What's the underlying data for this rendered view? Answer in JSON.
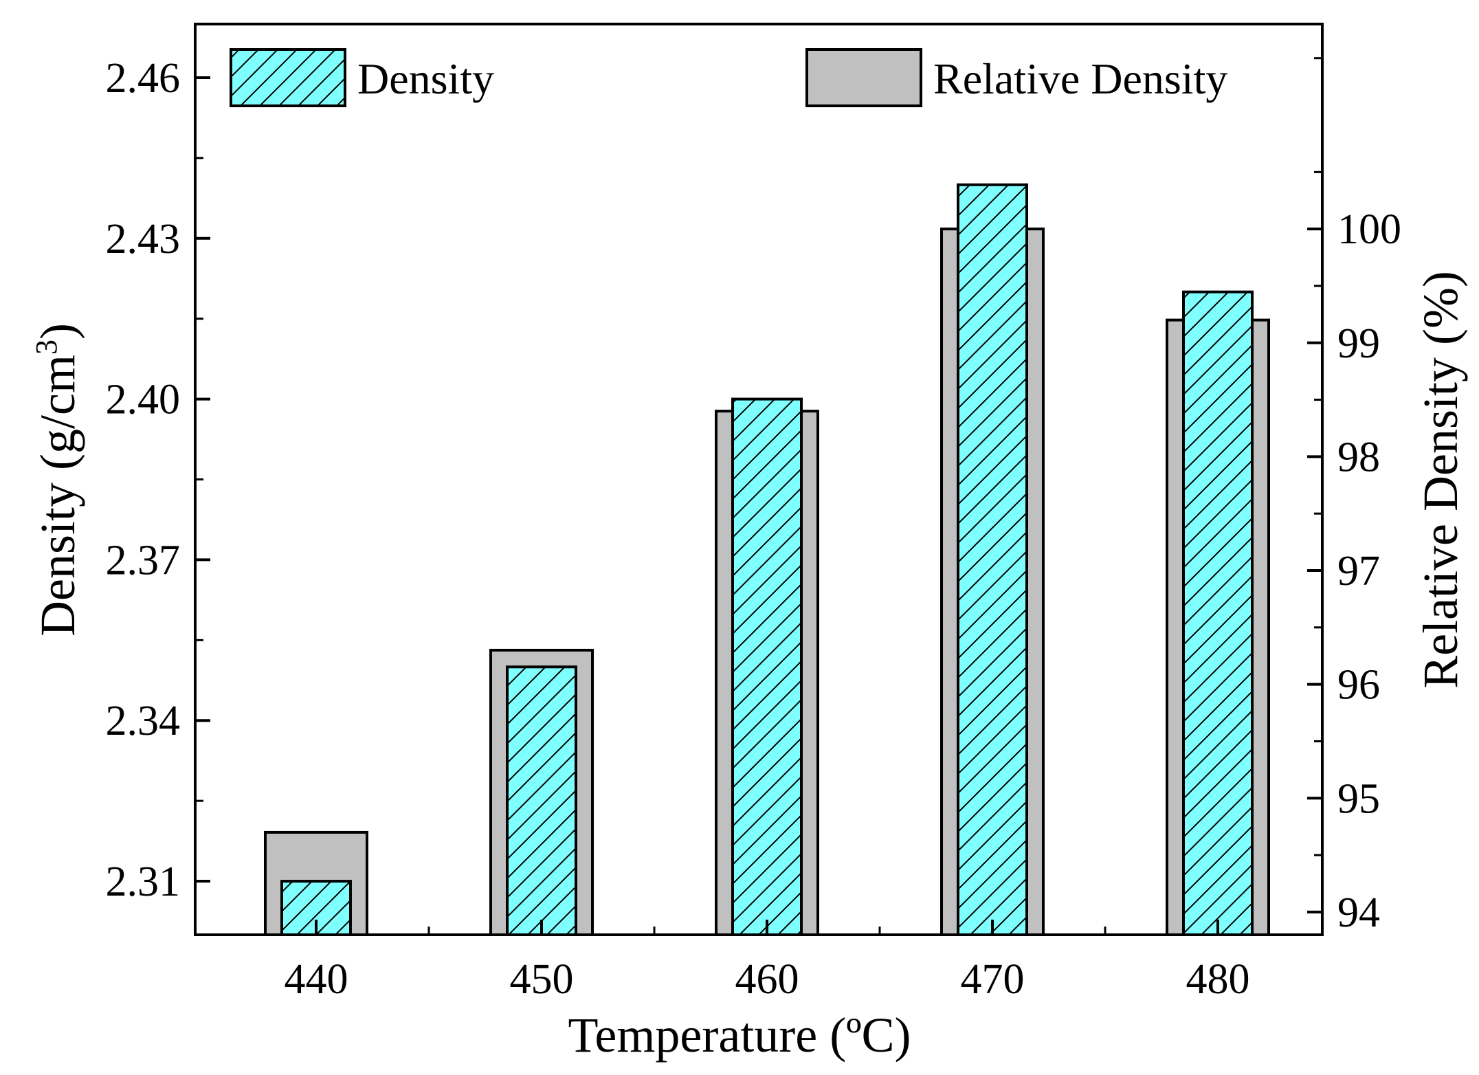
{
  "chart_data": {
    "type": "bar",
    "categories": [
      "440",
      "450",
      "460",
      "470",
      "480"
    ],
    "series": [
      {
        "name": "Density",
        "axis": "left",
        "values": [
          2.31,
          2.35,
          2.4,
          2.44,
          2.42
        ],
        "fill": "#80ffff",
        "pattern": "diagonal-hatch"
      },
      {
        "name": "Relative Density",
        "axis": "right",
        "values": [
          94.7,
          96.3,
          98.4,
          100.0,
          99.2
        ],
        "fill": "#c0c0c0"
      }
    ],
    "xlabel": "Temperature (ºC)",
    "ylabel_left": {
      "prefix": "Density (g/cm",
      "superscript": "3",
      "suffix": ")"
    },
    "ylabel_right": "Relative Density (%)",
    "ylim_left": [
      2.3,
      2.47
    ],
    "ylim_right": [
      93.8,
      101.8
    ],
    "yticks_left": [
      "2.31",
      "2.34",
      "2.37",
      "2.40",
      "2.43",
      "2.46"
    ],
    "yticks_right": [
      "94",
      "95",
      "96",
      "97",
      "98",
      "99",
      "100"
    ],
    "legend": [
      {
        "label": "Density",
        "series": "Density"
      },
      {
        "label": "Relative Density",
        "series": "Relative Density"
      }
    ],
    "legend_position": "top",
    "grid": false
  }
}
